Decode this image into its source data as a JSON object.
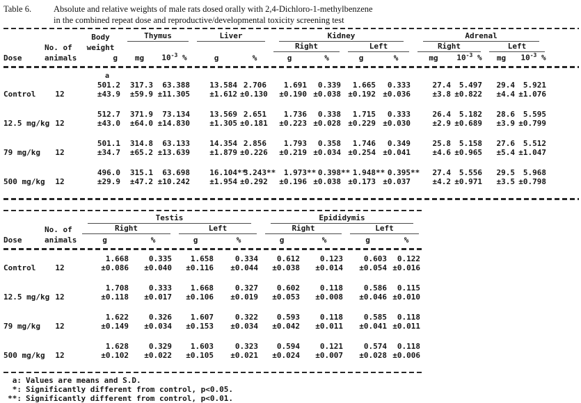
{
  "title": {
    "label": "Table 6.",
    "line1": "Absolute and relative weights of male rats dosed orally with 2,4-Dichloro-1-methylbenzene",
    "line2": "in the combined repeat dose and reproductive/developmental toxicity screening test"
  },
  "columns_common": {
    "dose": "Dose",
    "no_of": "No. of",
    "animals": "animals",
    "body": "Body",
    "weight": "weight",
    "unit_g": "g",
    "unit_mg": "mg",
    "unit_pct": "%",
    "e3_base": "10",
    "e3_exp": "-3",
    "right": "Right",
    "left": "Left"
  },
  "table1": {
    "groups": {
      "thymus": "Thymus",
      "liver": "Liver",
      "kidney": "Kidney",
      "adrenal": "Adrenal"
    },
    "rows": [
      {
        "dose": "Control",
        "n": "12",
        "cells": [
          {
            "m": "501.2",
            "s": "±43.9",
            "sup": "a"
          },
          {
            "m": "317.3",
            "s": "±59.9"
          },
          {
            "m": "63.388",
            "s": "±11.305"
          },
          {
            "m": "13.584",
            "s": "±1.612"
          },
          {
            "m": "2.706",
            "s": "±0.130"
          },
          {
            "m": "1.691",
            "s": "±0.190"
          },
          {
            "m": "0.339",
            "s": "±0.038"
          },
          {
            "m": "1.665",
            "s": "±0.192"
          },
          {
            "m": "0.333",
            "s": "±0.036"
          },
          {
            "m": "27.4",
            "s": "±3.8"
          },
          {
            "m": "5.497",
            "s": "±0.822"
          },
          {
            "m": "29.4",
            "s": "±4.4"
          },
          {
            "m": "5.921",
            "s": "±1.076"
          }
        ]
      },
      {
        "dose": "12.5 mg/kg",
        "n": "12",
        "cells": [
          {
            "m": "512.7",
            "s": "±43.0"
          },
          {
            "m": "371.9",
            "s": "±64.0"
          },
          {
            "m": "73.134",
            "s": "±14.830"
          },
          {
            "m": "13.569",
            "s": "±1.305"
          },
          {
            "m": "2.651",
            "s": "±0.181"
          },
          {
            "m": "1.736",
            "s": "±0.223"
          },
          {
            "m": "0.338",
            "s": "±0.028"
          },
          {
            "m": "1.715",
            "s": "±0.229"
          },
          {
            "m": "0.333",
            "s": "±0.030"
          },
          {
            "m": "26.4",
            "s": "±2.9"
          },
          {
            "m": "5.182",
            "s": "±0.689"
          },
          {
            "m": "28.6",
            "s": "±3.9"
          },
          {
            "m": "5.595",
            "s": "±0.799"
          }
        ]
      },
      {
        "dose": "79 mg/kg",
        "n": "12",
        "cells": [
          {
            "m": "501.1",
            "s": "±34.7"
          },
          {
            "m": "314.8",
            "s": "±65.2"
          },
          {
            "m": "63.133",
            "s": "±13.639"
          },
          {
            "m": "14.354",
            "s": "±1.879"
          },
          {
            "m": "2.856",
            "s": "±0.226"
          },
          {
            "m": "1.793",
            "s": "±0.219"
          },
          {
            "m": "0.358",
            "s": "±0.034"
          },
          {
            "m": "1.746",
            "s": "±0.254"
          },
          {
            "m": "0.349",
            "s": "±0.041"
          },
          {
            "m": "25.8",
            "s": "±4.6"
          },
          {
            "m": "5.158",
            "s": "±0.965"
          },
          {
            "m": "27.6",
            "s": "±5.4"
          },
          {
            "m": "5.512",
            "s": "±1.047"
          }
        ]
      },
      {
        "dose": "500 mg/kg",
        "n": "12",
        "cells": [
          {
            "m": "496.0",
            "s": "±29.9"
          },
          {
            "m": "315.1",
            "s": "±47.2"
          },
          {
            "m": "63.698",
            "s": "±10.242"
          },
          {
            "m": "16.104",
            "mk": "**",
            "s": "±1.954"
          },
          {
            "m": "3.243",
            "mk": "**",
            "s": "±0.292"
          },
          {
            "m": "1.973",
            "mk": "**",
            "s": "±0.196"
          },
          {
            "m": "0.398",
            "mk": "**",
            "s": "±0.038"
          },
          {
            "m": "1.948",
            "mk": "**",
            "s": "±0.173"
          },
          {
            "m": "0.395",
            "mk": "**",
            "s": "±0.037"
          },
          {
            "m": "27.4",
            "s": "±4.2"
          },
          {
            "m": "5.556",
            "s": "±0.971"
          },
          {
            "m": "29.5",
            "s": "±3.5"
          },
          {
            "m": "5.968",
            "s": "±0.798"
          }
        ]
      }
    ]
  },
  "table2": {
    "groups": {
      "testis": "Testis",
      "epididymis": "Epididymis"
    },
    "rows": [
      {
        "dose": "Control",
        "n": "12",
        "cells": [
          {
            "m": "1.668",
            "s": "±0.086"
          },
          {
            "m": "0.335",
            "s": "±0.040"
          },
          {
            "m": "1.658",
            "s": "±0.116"
          },
          {
            "m": "0.334",
            "s": "±0.044"
          },
          {
            "m": "0.612",
            "s": "±0.038"
          },
          {
            "m": "0.123",
            "s": "±0.014"
          },
          {
            "m": "0.603",
            "s": "±0.054"
          },
          {
            "m": "0.122",
            "s": "±0.016"
          }
        ]
      },
      {
        "dose": "12.5 mg/kg",
        "n": "12",
        "cells": [
          {
            "m": "1.708",
            "s": "±0.118"
          },
          {
            "m": "0.333",
            "s": "±0.017"
          },
          {
            "m": "1.668",
            "s": "±0.106"
          },
          {
            "m": "0.327",
            "s": "±0.019"
          },
          {
            "m": "0.602",
            "s": "±0.053"
          },
          {
            "m": "0.118",
            "s": "±0.008"
          },
          {
            "m": "0.586",
            "s": "±0.046"
          },
          {
            "m": "0.115",
            "s": "±0.010"
          }
        ]
      },
      {
        "dose": "79 mg/kg",
        "n": "12",
        "cells": [
          {
            "m": "1.622",
            "s": "±0.149"
          },
          {
            "m": "0.326",
            "s": "±0.034"
          },
          {
            "m": "1.607",
            "s": "±0.153"
          },
          {
            "m": "0.322",
            "s": "±0.034"
          },
          {
            "m": "0.593",
            "s": "±0.042"
          },
          {
            "m": "0.118",
            "s": "±0.011"
          },
          {
            "m": "0.585",
            "s": "±0.041"
          },
          {
            "m": "0.118",
            "s": "±0.011"
          }
        ]
      },
      {
        "dose": "500 mg/kg",
        "n": "12",
        "cells": [
          {
            "m": "1.628",
            "s": "±0.102"
          },
          {
            "m": "0.329",
            "s": "±0.022"
          },
          {
            "m": "1.603",
            "s": "±0.105"
          },
          {
            "m": "0.323",
            "s": "±0.021"
          },
          {
            "m": "0.594",
            "s": "±0.024"
          },
          {
            "m": "0.121",
            "s": "±0.007"
          },
          {
            "m": "0.574",
            "s": "±0.028"
          },
          {
            "m": "0.118",
            "s": "±0.006"
          }
        ]
      }
    ]
  },
  "footnotes": [
    {
      "marker": "a:",
      "text": "Values are means and S.D."
    },
    {
      "marker": "*:",
      "text": "Significantly different from control, p<0.05."
    },
    {
      "marker": "**:",
      "text": "Significantly different from control, p<0.01."
    }
  ]
}
